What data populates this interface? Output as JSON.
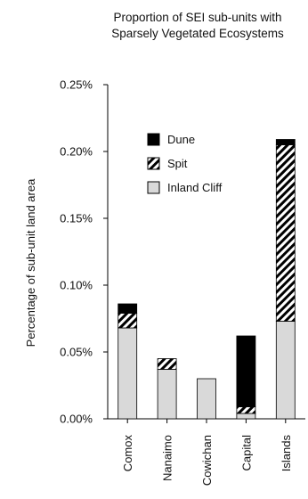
{
  "chart_data": {
    "type": "bar",
    "stacked": true,
    "title_lines": [
      "Proportion of SEI sub-units with",
      "Sparsely Vegetated Ecosystems"
    ],
    "ylabel": "Percentage of sub-unit land area",
    "xlabel": "",
    "categories": [
      "Comox",
      "Nanaimo",
      "Cowichan",
      "Capital",
      "Islands"
    ],
    "ylim": [
      0,
      0.25
    ],
    "yticks": [
      "0.00%",
      "0.05%",
      "0.10%",
      "0.15%",
      "0.20%",
      "0.25%"
    ],
    "ytick_values": [
      0,
      0.05,
      0.1,
      0.15,
      0.2,
      0.25
    ],
    "grid": false,
    "legend_position": "top-right",
    "series": [
      {
        "name": "Inland Cliff",
        "values": [
          0.068,
          0.037,
          0.03,
          0.004,
          0.073
        ],
        "fill": "#d9d9d9",
        "pattern": "solid"
      },
      {
        "name": "Spit",
        "values": [
          0.011,
          0.008,
          0.0,
          0.005,
          0.132
        ],
        "fill": "#000000",
        "pattern": "hatch"
      },
      {
        "name": "Dune",
        "values": [
          0.007,
          0.0,
          0.0,
          0.053,
          0.004
        ],
        "fill": "#000000",
        "pattern": "solid"
      }
    ]
  }
}
